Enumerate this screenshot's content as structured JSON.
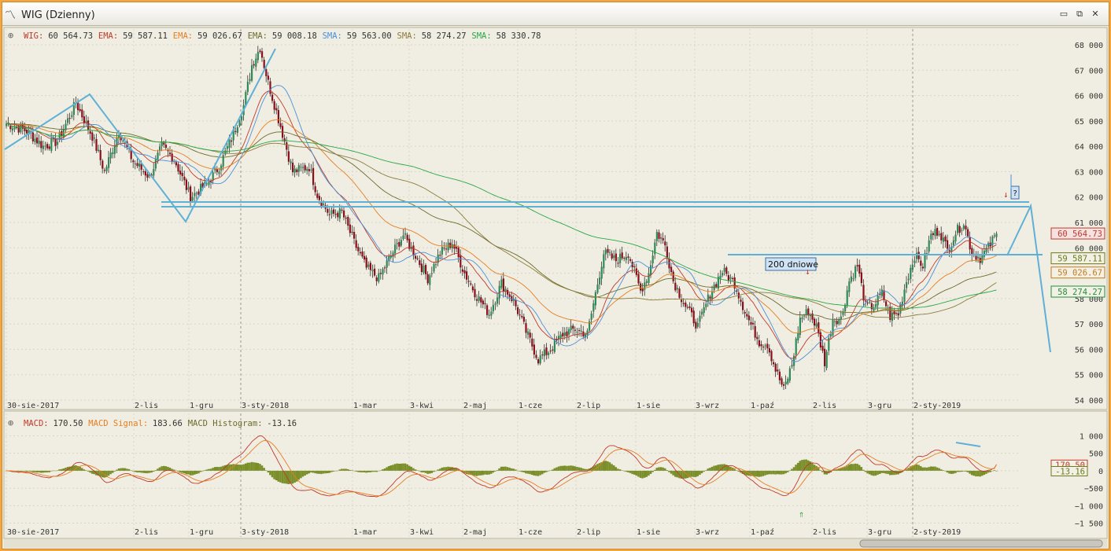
{
  "window": {
    "title": "WIG (Dzienny)",
    "app_icon": "chart-logo-icon",
    "buttons": [
      "minimize-icon",
      "restore-icon",
      "close-icon"
    ]
  },
  "colors": {
    "background": "#f0eee2",
    "up": "#2e8b57",
    "down": "#8b0f1a",
    "ema1": "#c0392b",
    "ema2": "#e67e22",
    "ema3": "#6b6b2b",
    "sma1": "#4a90d9",
    "sma2": "#8b7d3a",
    "sma3": "#27a844",
    "trendline": "#5fb0d6",
    "macd": "#c0392b",
    "signal": "#e67e22",
    "histogram": "#7a8f2a"
  },
  "price_legend": [
    {
      "name": "WIG:",
      "value": "60 564.73",
      "color": "#c0392b"
    },
    {
      "name": "EMA:",
      "value": "59 587.11",
      "color": "#c0392b"
    },
    {
      "name": "EMA:",
      "value": "59 026.67",
      "color": "#e67e22"
    },
    {
      "name": "EMA:",
      "value": "59 008.18",
      "color": "#6b6b2b"
    },
    {
      "name": "SMA:",
      "value": "59 563.00",
      "color": "#4a90d9"
    },
    {
      "name": "SMA:",
      "value": "58 274.27",
      "color": "#8b7d3a"
    },
    {
      "name": "SMA:",
      "value": "58 330.78",
      "color": "#27a844"
    }
  ],
  "macd_legend": [
    {
      "name": "MACD:",
      "value": "170.50",
      "color": "#c0392b"
    },
    {
      "name": "MACD Signal:",
      "value": "183.66",
      "color": "#e67e22"
    },
    {
      "name": "MACD Histogram:",
      "value": "-13.16",
      "color": "#6b6b2b"
    }
  ],
  "price_tags": [
    {
      "label": "60 564.73",
      "value": 60564.73,
      "color": "#c0392b",
      "filled": true
    },
    {
      "label": "59 587.11",
      "value": 59587.11,
      "color": "#6b7a1a",
      "filled": false
    },
    {
      "label": "59 026.67",
      "value": 59026.67,
      "color": "#c47a1a",
      "filled": false
    },
    {
      "label": "58 274.27",
      "value": 58274.27,
      "color": "#1f8f3a",
      "filled": false
    }
  ],
  "macd_tags": [
    {
      "label": "170.50",
      "value": 170.5,
      "color": "#c0392b"
    },
    {
      "label": "-13.16",
      "value": -13.16,
      "color": "#6b7a1a"
    }
  ],
  "annotations": {
    "box_label": "200 dniowe",
    "question_label": "?"
  },
  "chart_data": [
    {
      "type": "candlestick",
      "title": "WIG (Dzienny)",
      "ylim": [
        54000,
        68000
      ],
      "y_ticks": [
        54000,
        55000,
        56000,
        57000,
        58000,
        59000,
        60000,
        61000,
        62000,
        63000,
        64000,
        65000,
        66000,
        67000,
        68000
      ],
      "y_tick_labels": [
        "54 000",
        "55 000",
        "56 000",
        "57 000",
        "58 000",
        "59 000",
        "60 000",
        "61 000",
        "62 000",
        "63 000",
        "64 000",
        "65 000",
        "66 000",
        "67 000",
        "68 000"
      ],
      "x_labels": [
        "30-sie-2017",
        "2-lis",
        "1-gru",
        "3-sty-2018",
        "1-mar",
        "3-kwi",
        "2-maj",
        "1-cze",
        "2-lip",
        "1-sie",
        "3-wrz",
        "1-paź",
        "2-lis",
        "3-gru",
        "2-sty-2019"
      ],
      "grid": true,
      "close_anchors": [
        [
          0,
          64900
        ],
        [
          10,
          64600
        ],
        [
          18,
          64000
        ],
        [
          25,
          64200
        ],
        [
          34,
          65700
        ],
        [
          42,
          64400
        ],
        [
          48,
          63000
        ],
        [
          55,
          64600
        ],
        [
          62,
          63400
        ],
        [
          70,
          62800
        ],
        [
          76,
          64000
        ],
        [
          82,
          63500
        ],
        [
          90,
          62000
        ],
        [
          98,
          62500
        ],
        [
          104,
          63200
        ],
        [
          110,
          64300
        ],
        [
          116,
          65600
        ],
        [
          120,
          67200
        ],
        [
          124,
          67900
        ],
        [
          128,
          66500
        ],
        [
          134,
          64800
        ],
        [
          140,
          63000
        ],
        [
          148,
          63200
        ],
        [
          152,
          62100
        ],
        [
          158,
          61300
        ],
        [
          164,
          61400
        ],
        [
          170,
          60200
        ],
        [
          176,
          59200
        ],
        [
          182,
          58800
        ],
        [
          188,
          59700
        ],
        [
          194,
          60500
        ],
        [
          200,
          59700
        ],
        [
          206,
          58800
        ],
        [
          212,
          59800
        ],
        [
          218,
          60200
        ],
        [
          224,
          59000
        ],
        [
          230,
          58100
        ],
        [
          236,
          57400
        ],
        [
          242,
          58600
        ],
        [
          248,
          57900
        ],
        [
          254,
          56700
        ],
        [
          260,
          55600
        ],
        [
          266,
          56000
        ],
        [
          272,
          56600
        ],
        [
          278,
          56800
        ],
        [
          284,
          56600
        ],
        [
          288,
          58200
        ],
        [
          292,
          59800
        ],
        [
          298,
          59500
        ],
        [
          304,
          59800
        ],
        [
          310,
          58300
        ],
        [
          314,
          59000
        ],
        [
          318,
          60600
        ],
        [
          322,
          60100
        ],
        [
          326,
          58700
        ],
        [
          332,
          57700
        ],
        [
          338,
          56900
        ],
        [
          344,
          58200
        ],
        [
          350,
          59100
        ],
        [
          356,
          58600
        ],
        [
          362,
          57300
        ],
        [
          368,
          56300
        ],
        [
          372,
          56200
        ],
        [
          376,
          55200
        ],
        [
          380,
          54400
        ],
        [
          384,
          55400
        ],
        [
          388,
          57200
        ],
        [
          392,
          57500
        ],
        [
          396,
          56900
        ],
        [
          400,
          55500
        ],
        [
          404,
          57200
        ],
        [
          408,
          57200
        ],
        [
          412,
          58700
        ],
        [
          416,
          59300
        ],
        [
          420,
          57700
        ],
        [
          424,
          57700
        ],
        [
          428,
          58200
        ],
        [
          432,
          57300
        ],
        [
          436,
          57400
        ],
        [
          440,
          58700
        ],
        [
          444,
          59700
        ],
        [
          448,
          59300
        ],
        [
          452,
          60500
        ],
        [
          456,
          60700
        ],
        [
          460,
          59900
        ],
        [
          464,
          60600
        ],
        [
          468,
          61000
        ],
        [
          472,
          59800
        ],
        [
          476,
          59600
        ],
        [
          480,
          60000
        ],
        [
          484,
          60560
        ]
      ],
      "series": [
        {
          "name": "EMA",
          "kind": "ema",
          "period": 20,
          "color": "#c0392b"
        },
        {
          "name": "EMA",
          "kind": "ema",
          "period": 50,
          "color": "#e67e22"
        },
        {
          "name": "EMA",
          "kind": "ema",
          "period": 100,
          "color": "#6b6b2b"
        },
        {
          "name": "SMA",
          "kind": "sma",
          "period": 20,
          "color": "#4a90d9"
        },
        {
          "name": "SMA",
          "kind": "sma",
          "period": 100,
          "color": "#8b7d3a"
        },
        {
          "name": "SMA",
          "kind": "sma",
          "period": 200,
          "color": "#27a844"
        }
      ]
    },
    {
      "type": "macd",
      "ylim": [
        -1600,
        1100
      ],
      "y_ticks": [
        -1500,
        -1000,
        -500,
        0,
        500,
        1000
      ],
      "y_tick_labels": [
        "−1 500",
        "−1 000",
        "−500",
        "0",
        "500",
        "1 000"
      ],
      "x_labels": [
        "30-sie-2017",
        "2-lis",
        "1-gru",
        "3-sty-2018",
        "1-mar",
        "3-kwi",
        "2-maj",
        "1-cze",
        "2-lip",
        "1-sie",
        "3-wrz",
        "1-paź",
        "2-lis",
        "3-gru",
        "2-sty-2019"
      ],
      "series": [
        {
          "name": "MACD",
          "color": "#c0392b"
        },
        {
          "name": "MACD Signal",
          "color": "#e67e22"
        },
        {
          "name": "MACD Histogram",
          "color": "#7a8f2a"
        }
      ]
    }
  ]
}
